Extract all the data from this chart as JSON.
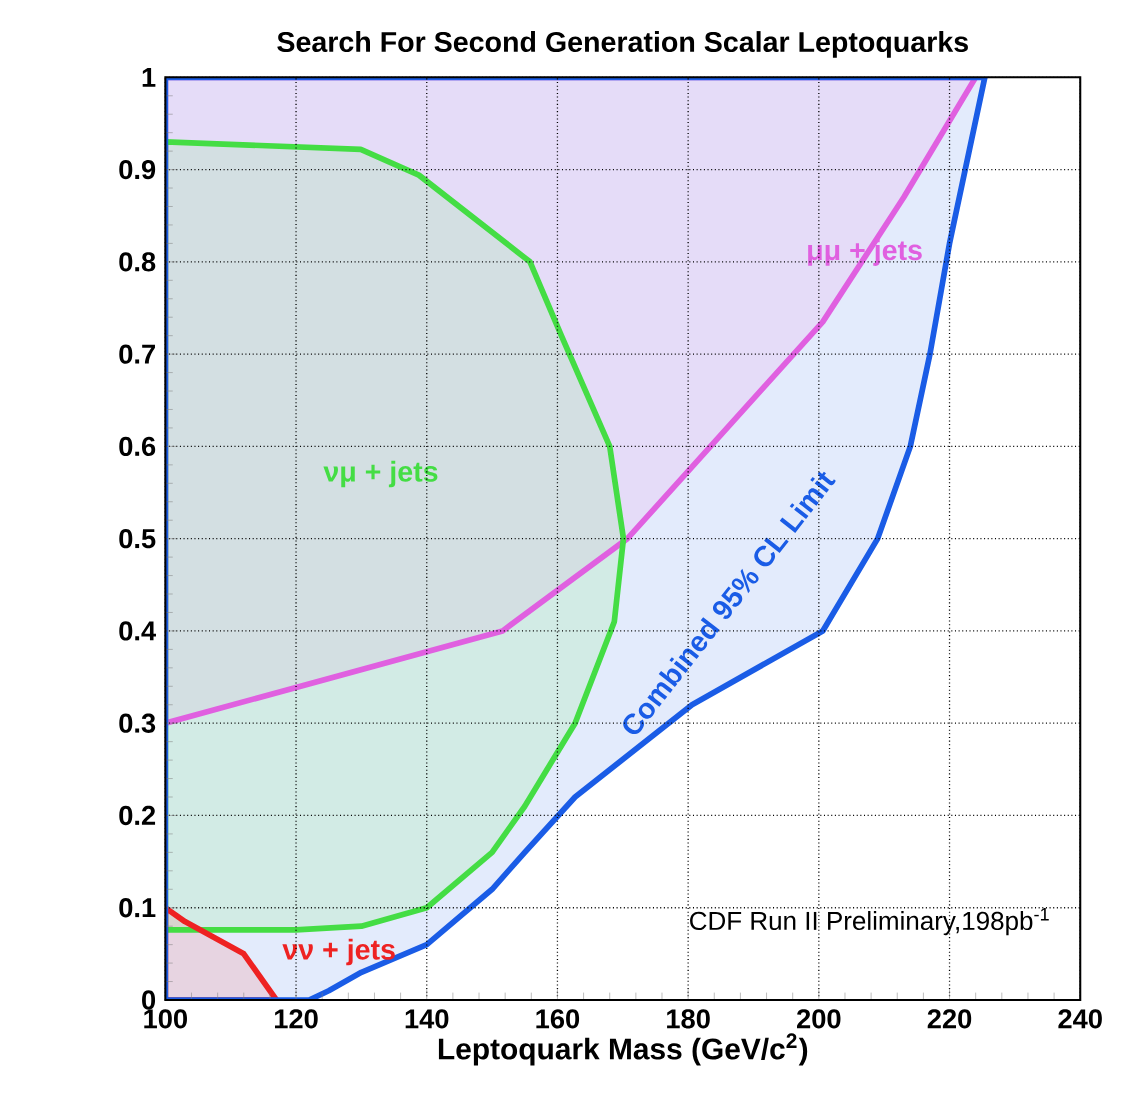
{
  "chart_data": {
    "type": "area",
    "title": "Search For Second Generation Scalar Leptoquarks",
    "xlabel": "Leptoquark Mass (GeV/c$^{2}$)",
    "xlim": [
      100,
      240
    ],
    "ylim": [
      0,
      1
    ],
    "xticks": [
      100,
      120,
      140,
      160,
      180,
      200,
      220,
      240
    ],
    "yticks": [
      0,
      0.1,
      0.2,
      0.3,
      0.4,
      0.5,
      0.6,
      0.7,
      0.8,
      0.9,
      1
    ],
    "grid": true,
    "series": [
      {
        "name": "Combined 95% CL Limit",
        "color": "#1a5ce6",
        "x": [
          100,
          122,
          125,
          130,
          140,
          150,
          155,
          162.7,
          180.6,
          200.6,
          209,
          214,
          217,
          220,
          225.4,
          100
        ],
        "values": [
          0,
          0,
          0.01,
          0.03,
          0.06,
          0.12,
          0.16,
          0.22,
          0.32,
          0.4,
          0.5,
          0.6,
          0.7,
          0.82,
          1,
          1
        ]
      },
      {
        "name": "μμ + jets",
        "color": "#e060e0",
        "x": [
          100,
          151.6,
          170.7,
          200.6,
          213,
          224,
          100
        ],
        "values": [
          0.3,
          0.4,
          0.5,
          0.735,
          0.87,
          1,
          1
        ]
      },
      {
        "name": "νμ + jets",
        "color": "#44dd44",
        "x": [
          100,
          129.9,
          138.8,
          155.8,
          160.6,
          168,
          170.1,
          168.7,
          162.7,
          155,
          150,
          140,
          135,
          130,
          120,
          100
        ],
        "values": [
          0.93,
          0.922,
          0.894,
          0.8,
          0.72,
          0.6,
          0.5,
          0.41,
          0.3,
          0.21,
          0.16,
          0.1,
          0.09,
          0.08,
          0.076,
          0.076
        ]
      },
      {
        "name": "νν + jets",
        "color": "#ee2222",
        "x": [
          100,
          103,
          112,
          117,
          100
        ],
        "values": [
          0.1,
          0.085,
          0.05,
          0,
          0
        ]
      }
    ],
    "annotations": [
      "CDF Run II Preliminary,198pb$^{-1}$"
    ]
  }
}
